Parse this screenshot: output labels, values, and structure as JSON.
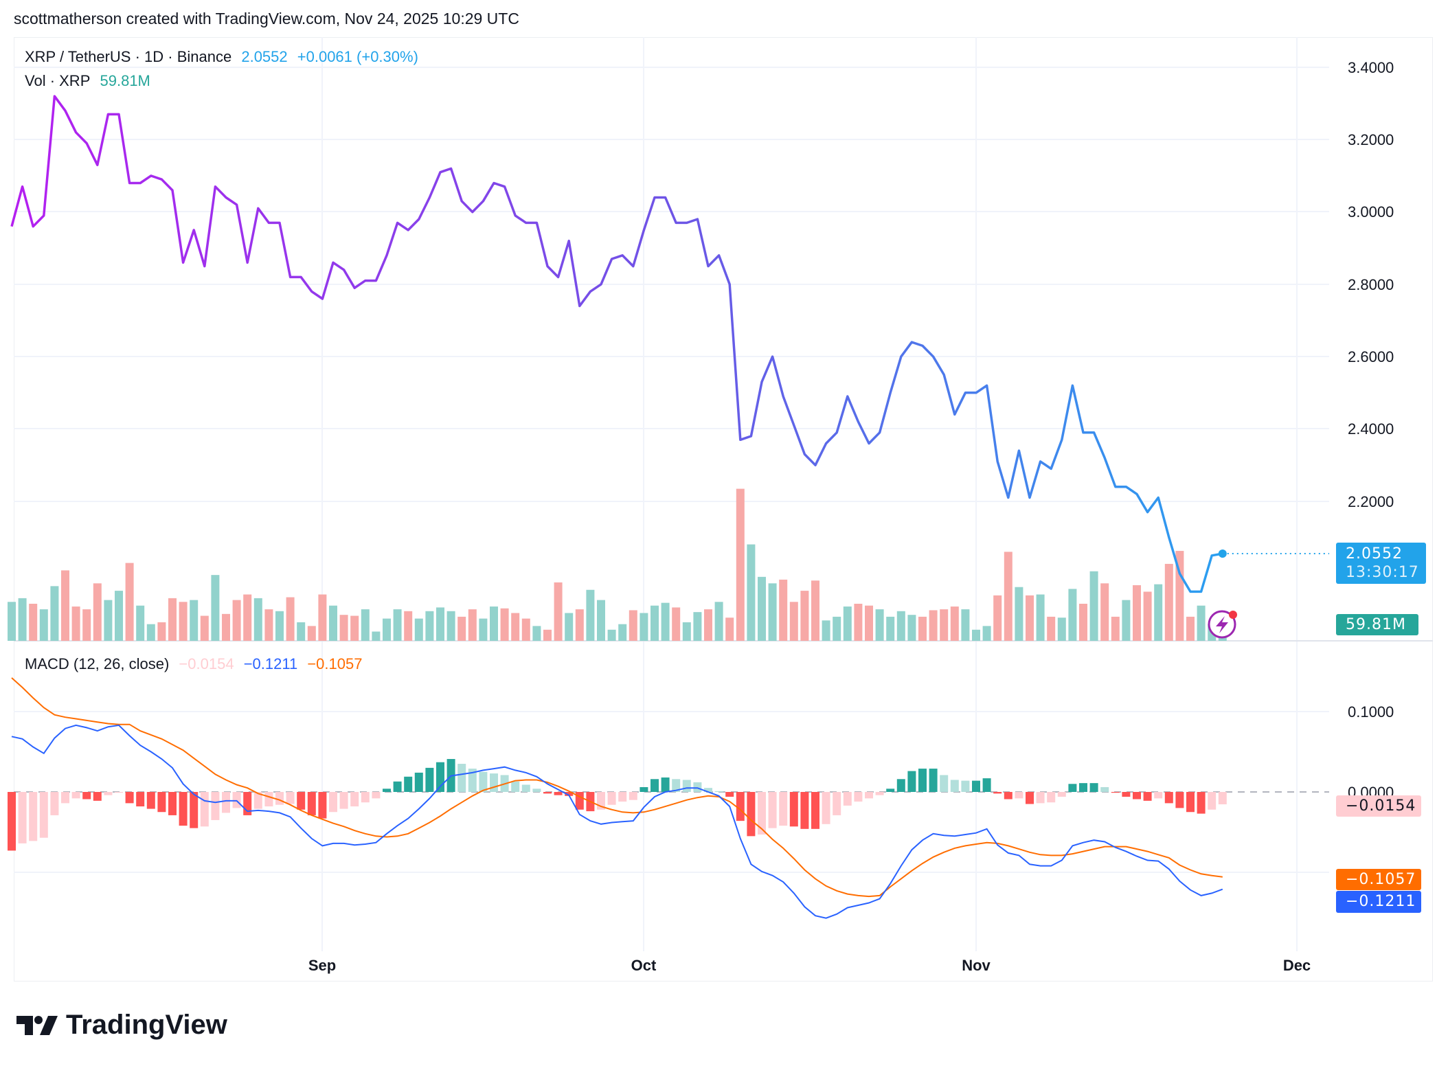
{
  "header": {
    "text": "scottmatherson created with TradingView.com, Nov 24, 2025 10:29 UTC"
  },
  "legend": {
    "symbol": "XRP / TetherUS · 1D · Binance",
    "price": "2.0552",
    "change": "+0.0061 (+0.30%)",
    "vol_label": "Vol · XRP",
    "vol_value": "59.81M",
    "macd_label": "MACD (12, 26, close)",
    "macd_hist": "−0.0154",
    "macd_line": "−0.1211",
    "macd_signal": "−0.1057"
  },
  "price_tag": {
    "price": "2.0552",
    "countdown": "13:30:17"
  },
  "vol_tag": "59.81M",
  "macd_tags": {
    "hist": "−0.0154",
    "signal": "−0.1057",
    "macd": "−0.1211"
  },
  "logo": {
    "text": "TradingView"
  },
  "icons": {
    "alert": "lightning-alert-icon"
  },
  "colors": {
    "line_start": "#b41ff0",
    "line_mid": "#6d55e6",
    "line_end": "#2a9ff0",
    "vol_up": "#92d2cc",
    "vol_down": "#f7a9a7",
    "macd": "#2962ff",
    "signal": "#ff6d00",
    "hist_up_strong": "#26a69a",
    "hist_up_weak": "#b2dfdb",
    "hist_down_strong": "#ff5252",
    "hist_down_weak": "#ffcdd2",
    "price_tag": "#22a3ea",
    "vol_tag": "#26a69a"
  },
  "chart_data": [
    {
      "type": "line",
      "title": "XRP / TetherUS · 1D · Binance",
      "y_ticks": [
        "3.4000",
        "3.2000",
        "3.0000",
        "2.8000",
        "2.6000",
        "2.4000",
        "2.2000"
      ],
      "ylim": [
        1.8,
        3.45
      ],
      "x_ticks": [
        "Sep",
        "Oct",
        "Nov",
        "Dec"
      ],
      "grid": true,
      "dates": [
        "2025-08-03",
        "2025-08-04",
        "2025-08-05",
        "2025-08-06",
        "2025-08-07",
        "2025-08-08",
        "2025-08-09",
        "2025-08-10",
        "2025-08-11",
        "2025-08-12",
        "2025-08-13",
        "2025-08-14",
        "2025-08-15",
        "2025-08-16",
        "2025-08-17",
        "2025-08-18",
        "2025-08-19",
        "2025-08-20",
        "2025-08-21",
        "2025-08-22",
        "2025-08-23",
        "2025-08-24",
        "2025-08-25",
        "2025-08-26",
        "2025-08-27",
        "2025-08-28",
        "2025-08-29",
        "2025-08-30",
        "2025-08-31",
        "2025-09-01",
        "2025-09-02",
        "2025-09-03",
        "2025-09-04",
        "2025-09-05",
        "2025-09-06",
        "2025-09-07",
        "2025-09-08",
        "2025-09-09",
        "2025-09-10",
        "2025-09-11",
        "2025-09-12",
        "2025-09-13",
        "2025-09-14",
        "2025-09-15",
        "2025-09-16",
        "2025-09-17",
        "2025-09-18",
        "2025-09-19",
        "2025-09-20",
        "2025-09-21",
        "2025-09-22",
        "2025-09-23",
        "2025-09-24",
        "2025-09-25",
        "2025-09-26",
        "2025-09-27",
        "2025-09-28",
        "2025-09-29",
        "2025-09-30",
        "2025-10-01",
        "2025-10-02",
        "2025-10-03",
        "2025-10-04",
        "2025-10-05",
        "2025-10-06",
        "2025-10-07",
        "2025-10-08",
        "2025-10-09",
        "2025-10-10",
        "2025-10-11",
        "2025-10-12",
        "2025-10-13",
        "2025-10-14",
        "2025-10-15",
        "2025-10-16",
        "2025-10-17",
        "2025-10-18",
        "2025-10-19",
        "2025-10-20",
        "2025-10-21",
        "2025-10-22",
        "2025-10-23",
        "2025-10-24",
        "2025-10-25",
        "2025-10-26",
        "2025-10-27",
        "2025-10-28",
        "2025-10-29",
        "2025-10-30",
        "2025-10-31",
        "2025-11-01",
        "2025-11-02",
        "2025-11-03",
        "2025-11-04",
        "2025-11-05",
        "2025-11-06",
        "2025-11-07",
        "2025-11-08",
        "2025-11-09",
        "2025-11-10",
        "2025-11-11",
        "2025-11-12",
        "2025-11-13",
        "2025-11-14",
        "2025-11-15",
        "2025-11-16",
        "2025-11-17",
        "2025-11-18",
        "2025-11-19",
        "2025-11-20",
        "2025-11-21",
        "2025-11-22",
        "2025-11-23",
        "2025-11-24"
      ],
      "close": [
        2.96,
        3.07,
        2.96,
        2.99,
        3.32,
        3.28,
        3.22,
        3.19,
        3.13,
        3.27,
        3.27,
        3.08,
        3.08,
        3.1,
        3.09,
        3.06,
        2.86,
        2.95,
        2.85,
        3.07,
        3.04,
        3.02,
        2.86,
        3.01,
        2.97,
        2.97,
        2.82,
        2.82,
        2.78,
        2.76,
        2.86,
        2.84,
        2.79,
        2.81,
        2.81,
        2.88,
        2.97,
        2.95,
        2.98,
        3.04,
        3.11,
        3.12,
        3.03,
        3.0,
        3.03,
        3.08,
        3.07,
        2.99,
        2.97,
        2.97,
        2.85,
        2.82,
        2.92,
        2.74,
        2.78,
        2.8,
        2.87,
        2.88,
        2.85,
        2.95,
        3.04,
        3.04,
        2.97,
        2.97,
        2.98,
        2.85,
        2.88,
        2.8,
        2.37,
        2.38,
        2.53,
        2.6,
        2.49,
        2.41,
        2.33,
        2.3,
        2.36,
        2.39,
        2.49,
        2.42,
        2.36,
        2.39,
        2.5,
        2.6,
        2.64,
        2.63,
        2.6,
        2.55,
        2.44,
        2.5,
        2.5,
        2.52,
        2.31,
        2.21,
        2.34,
        2.21,
        2.31,
        2.29,
        2.37,
        2.52,
        2.39,
        2.39,
        2.32,
        2.24,
        2.24,
        2.22,
        2.17,
        2.21,
        2.1,
        2.0,
        1.95,
        1.95,
        2.05,
        2.0552
      ],
      "volume_m": [
        126,
        138,
        120,
        102,
        177,
        228,
        111,
        102,
        186,
        132,
        162,
        252,
        114,
        54,
        60,
        138,
        126,
        132,
        81,
        213,
        87,
        132,
        150,
        138,
        102,
        96,
        141,
        60,
        48,
        150,
        114,
        84,
        81,
        102,
        30,
        72,
        102,
        96,
        72,
        96,
        108,
        96,
        78,
        102,
        72,
        111,
        105,
        90,
        72,
        48,
        36,
        189,
        90,
        102,
        165,
        132,
        36,
        54,
        99,
        90,
        114,
        123,
        108,
        60,
        93,
        102,
        126,
        75,
        492,
        312,
        207,
        186,
        198,
        126,
        162,
        195,
        66,
        78,
        111,
        120,
        114,
        102,
        78,
        96,
        84,
        78,
        99,
        102,
        111,
        102,
        36,
        48,
        147,
        288,
        174,
        147,
        150,
        78,
        75,
        168,
        120,
        225,
        186,
        78,
        132,
        180,
        159,
        183,
        249,
        291,
        78,
        114,
        54,
        59.81
      ]
    },
    {
      "type": "line",
      "title": "MACD (12, 26, close)",
      "y_ticks": [
        "0.1000",
        "0.0000"
      ],
      "series": [
        {
          "name": "MACD",
          "values": [
            0.069,
            0.066,
            0.056,
            0.048,
            0.067,
            0.079,
            0.083,
            0.08,
            0.076,
            0.081,
            0.083,
            0.07,
            0.058,
            0.05,
            0.041,
            0.03,
            0.01,
            -0.003,
            -0.011,
            -0.013,
            -0.011,
            -0.011,
            -0.024,
            -0.023,
            -0.024,
            -0.026,
            -0.031,
            -0.045,
            -0.058,
            -0.067,
            -0.064,
            -0.064,
            -0.066,
            -0.065,
            -0.063,
            -0.052,
            -0.042,
            -0.033,
            -0.021,
            -0.008,
            0.007,
            0.02,
            0.022,
            0.024,
            0.027,
            0.029,
            0.031,
            0.027,
            0.024,
            0.019,
            0.01,
            0.003,
            -0.004,
            -0.028,
            -0.036,
            -0.04,
            -0.038,
            -0.037,
            -0.036,
            -0.019,
            -0.006,
            0.0,
            0.002,
            0.005,
            0.005,
            0.0,
            -0.005,
            -0.018,
            -0.058,
            -0.09,
            -0.099,
            -0.104,
            -0.112,
            -0.126,
            -0.143,
            -0.154,
            -0.157,
            -0.152,
            -0.144,
            -0.141,
            -0.138,
            -0.133,
            -0.114,
            -0.092,
            -0.072,
            -0.06,
            -0.052,
            -0.054,
            -0.055,
            -0.053,
            -0.051,
            -0.046,
            -0.066,
            -0.076,
            -0.079,
            -0.09,
            -0.092,
            -0.092,
            -0.085,
            -0.067,
            -0.063,
            -0.06,
            -0.062,
            -0.069,
            -0.074,
            -0.08,
            -0.085,
            -0.086,
            -0.096,
            -0.111,
            -0.122,
            -0.129,
            -0.126,
            -0.1211
          ]
        },
        {
          "name": "Signal",
          "values": [
            0.142,
            0.13,
            0.117,
            0.105,
            0.096,
            0.093,
            0.091,
            0.089,
            0.087,
            0.085,
            0.084,
            0.084,
            0.076,
            0.071,
            0.066,
            0.059,
            0.052,
            0.042,
            0.032,
            0.022,
            0.015,
            0.009,
            0.005,
            -0.002,
            -0.006,
            -0.01,
            -0.016,
            -0.023,
            -0.029,
            -0.034,
            -0.039,
            -0.043,
            -0.048,
            -0.052,
            -0.055,
            -0.056,
            -0.055,
            -0.052,
            -0.045,
            -0.038,
            -0.03,
            -0.021,
            -0.013,
            -0.005,
            0.002,
            0.006,
            0.01,
            0.014,
            0.015,
            0.015,
            0.012,
            0.007,
            0.001,
            -0.006,
            -0.012,
            -0.018,
            -0.022,
            -0.025,
            -0.026,
            -0.025,
            -0.022,
            -0.018,
            -0.014,
            -0.01,
            -0.007,
            -0.005,
            -0.006,
            -0.012,
            -0.022,
            -0.035,
            -0.046,
            -0.059,
            -0.07,
            -0.083,
            -0.097,
            -0.108,
            -0.117,
            -0.123,
            -0.127,
            -0.129,
            -0.13,
            -0.129,
            -0.118,
            -0.108,
            -0.098,
            -0.089,
            -0.081,
            -0.075,
            -0.07,
            -0.067,
            -0.065,
            -0.063,
            -0.064,
            -0.067,
            -0.071,
            -0.075,
            -0.078,
            -0.079,
            -0.079,
            -0.077,
            -0.074,
            -0.071,
            -0.068,
            -0.068,
            -0.068,
            -0.071,
            -0.074,
            -0.078,
            -0.082,
            -0.091,
            -0.097,
            -0.102,
            -0.104,
            -0.1057
          ]
        }
      ]
    }
  ]
}
